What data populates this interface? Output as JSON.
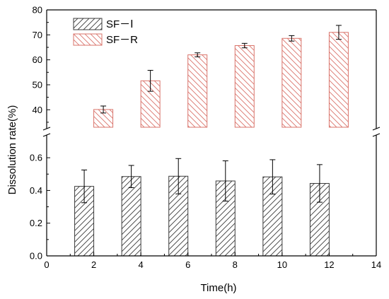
{
  "chart_data": {
    "type": "bar",
    "title": "",
    "xlabel": "Time(h)",
    "ylabel": "Dissolution rate(%)",
    "x": [
      2,
      4,
      6,
      8,
      10,
      12
    ],
    "xlim": [
      0,
      14
    ],
    "xticks": [
      "0",
      "2",
      "4",
      "6",
      "8",
      "10",
      "12",
      "14"
    ],
    "axis_break": true,
    "y_lower": {
      "range": [
        0.0,
        0.7
      ],
      "ticks": [
        "0.0",
        "0.2",
        "0.4",
        "0.6"
      ]
    },
    "y_upper": {
      "range": [
        33,
        80
      ],
      "ticks": [
        "40",
        "50",
        "60",
        "70",
        "80"
      ]
    },
    "legend_position": "top-left",
    "series": [
      {
        "name": "SF－Ⅰ",
        "segment": "lower",
        "hatch": "forward",
        "color": "#3a3a3a",
        "values": [
          0.425,
          0.485,
          0.487,
          0.458,
          0.483,
          0.443
        ],
        "errors": [
          0.1,
          0.068,
          0.108,
          0.123,
          0.105,
          0.115
        ]
      },
      {
        "name": "SF－R",
        "segment": "upper",
        "hatch": "backward",
        "color": "#d9736a",
        "values": [
          40.1,
          51.6,
          62.0,
          65.7,
          68.6,
          71.0
        ],
        "errors": [
          1.4,
          4.2,
          0.8,
          0.9,
          1.1,
          2.8
        ]
      }
    ]
  }
}
